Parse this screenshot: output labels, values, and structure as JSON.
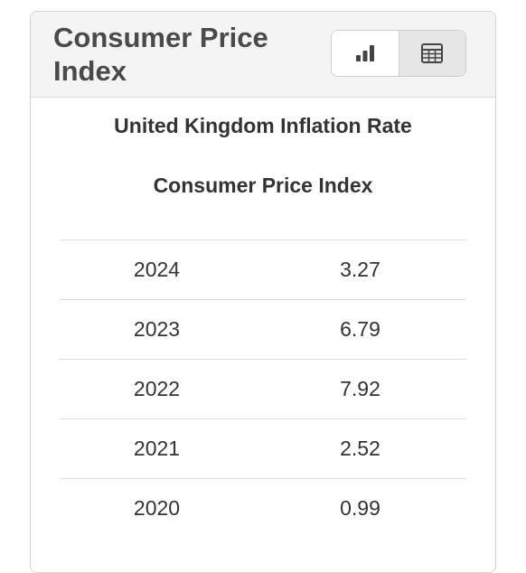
{
  "header": {
    "title": "Consumer Price Index",
    "chart_view_icon": "bar-chart-icon",
    "table_view_icon": "table-icon"
  },
  "chart_title": "United Kingdom Inflation Rate",
  "chart_subtitle": "Consumer Price Index",
  "table": {
    "rows": [
      {
        "year": "2024",
        "value": "3.27"
      },
      {
        "year": "2023",
        "value": "6.79"
      },
      {
        "year": "2022",
        "value": "7.92"
      },
      {
        "year": "2021",
        "value": "2.52"
      },
      {
        "year": "2020",
        "value": "0.99"
      }
    ]
  },
  "colors": {
    "header_bg": "#f4f4f4",
    "active_toggle_bg": "#e6e6e6",
    "text": "#333333",
    "title_text": "#4a4a4a"
  }
}
